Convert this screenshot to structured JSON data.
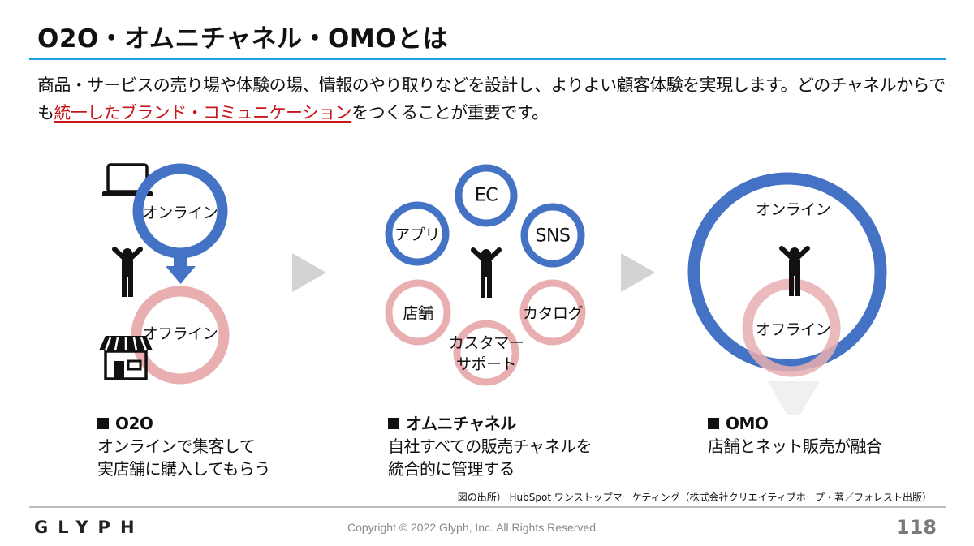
{
  "title": "O2O・オムニチャネル・OMOとは",
  "lead": {
    "before": "商品・サービスの売り場や体験の場、情報のやり取りなどを設計し、よりよい顧客体験を実現します。どのチャネルからでも",
    "highlight": "統一したブランド・コミュニケーション",
    "after": "をつくることが重要です。"
  },
  "colors": {
    "online_blue": "#4472c4",
    "offline_pink": "#e8aeb0",
    "accent_red": "#c8161d",
    "rule_blue": "#1aa3e0"
  },
  "o2o": {
    "online_label": "オンライン",
    "offline_label": "オフライン",
    "icons": [
      "laptop-icon",
      "person-icon",
      "store-icon",
      "arrow-down-icon"
    ],
    "caption_title": "O2O",
    "caption_lines": [
      "オンラインで集客して",
      "実店舗に購入してもらう"
    ]
  },
  "omni": {
    "channels": {
      "ec": "EC",
      "app": "アプリ",
      "sns": "SNS",
      "store": "店舗",
      "catalog": "カタログ",
      "support_line1": "カスタマー",
      "support_line2": "サポート"
    },
    "caption_title": "オムニチャネル",
    "caption_lines": [
      "自社すべての販売チャネルを",
      "統合的に管理する"
    ]
  },
  "omo": {
    "online_label": "オンライン",
    "offline_label": "オフライン",
    "caption_title": "OMO",
    "caption_lines": [
      "店舗とネット販売が融合"
    ]
  },
  "source": "図の出所） HubSpot ワンストップマーケティング（株式会社クリエイティブホープ・著／フォレスト出版）",
  "footer": {
    "logo": "GLYPH",
    "copyright": "Copyright © 2022 Glyph, Inc. All Rights Reserved.",
    "page_number": "118"
  }
}
